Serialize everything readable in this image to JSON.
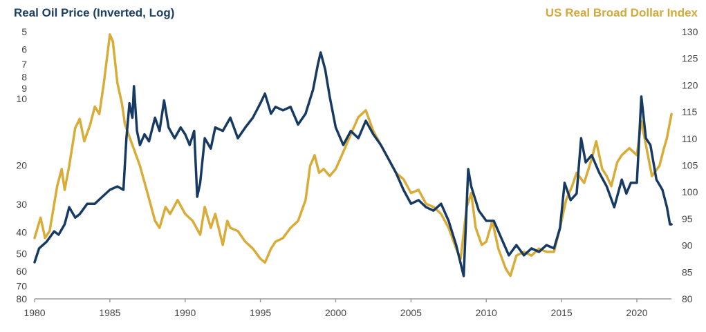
{
  "chart_data": {
    "type": "line",
    "title_left": "Real Oil Price (Inverted, Log)",
    "title_right": "US Real Broad Dollar Index",
    "xlabel": "",
    "x_ticks": [
      "1980",
      "1985",
      "1990",
      "1995",
      "2000",
      "2005",
      "2010",
      "2015",
      "2020"
    ],
    "xlim": [
      1980,
      2022.3
    ],
    "left_axis": {
      "scale": "log",
      "inverted": true,
      "ylim": [
        5,
        80
      ],
      "ticks": [
        "5",
        "6",
        "7",
        "8",
        "9",
        "10",
        "20",
        "30",
        "40",
        "50",
        "60",
        "70",
        "80"
      ]
    },
    "right_axis": {
      "scale": "linear",
      "ylim": [
        80,
        130
      ],
      "ticks": [
        "130",
        "125",
        "120",
        "115",
        "110",
        "105",
        "100",
        "95",
        "90",
        "85",
        "80"
      ]
    },
    "grid": false,
    "colors": {
      "oil": "#173a63",
      "dollar": "#d9ac37",
      "axis": "#9a9a9a"
    },
    "series": [
      {
        "name": "Real Oil Price",
        "axis": "left",
        "x": [
          1980.0,
          1980.3,
          1980.8,
          1981.3,
          1981.6,
          1982.0,
          1982.3,
          1982.7,
          1983.0,
          1983.5,
          1984.0,
          1984.5,
          1985.0,
          1985.5,
          1985.9,
          1986.1,
          1986.3,
          1986.5,
          1986.6,
          1986.8,
          1987.0,
          1987.3,
          1987.6,
          1988.0,
          1988.3,
          1988.6,
          1988.9,
          1989.3,
          1989.7,
          1990.0,
          1990.3,
          1990.6,
          1990.8,
          1991.0,
          1991.3,
          1991.7,
          1992.0,
          1992.5,
          1993.0,
          1993.5,
          1994.0,
          1994.5,
          1995.0,
          1995.3,
          1995.7,
          1996.0,
          1996.5,
          1997.0,
          1997.5,
          1998.0,
          1998.5,
          1998.8,
          1999.0,
          1999.3,
          1999.6,
          2000.0,
          2000.5,
          2001.0,
          2001.5,
          2002.0,
          2002.5,
          2003.0,
          2003.5,
          2004.0,
          2004.5,
          2005.0,
          2005.5,
          2006.0,
          2006.5,
          2007.0,
          2007.5,
          2008.0,
          2008.5,
          2008.8,
          2009.0,
          2009.5,
          2010.0,
          2010.5,
          2011.0,
          2011.5,
          2012.0,
          2012.5,
          2013.0,
          2013.5,
          2014.0,
          2014.5,
          2014.9,
          2015.2,
          2015.6,
          2016.0,
          2016.3,
          2016.6,
          2017.0,
          2017.5,
          2018.0,
          2018.5,
          2019.0,
          2019.3,
          2019.6,
          2020.0,
          2020.3,
          2020.6,
          2020.9,
          2021.3,
          2021.7,
          2022.0,
          2022.2,
          2022.3
        ],
        "values": [
          54.7,
          47.4,
          44.2,
          39.7,
          41.1,
          36.9,
          30.9,
          34.4,
          33.2,
          29.8,
          29.8,
          27.7,
          25.8,
          24.9,
          25.8,
          15.1,
          10.5,
          12.2,
          8.8,
          14.0,
          16.2,
          14.5,
          15.6,
          12.2,
          14.0,
          10.2,
          13.5,
          15.1,
          13.5,
          14.5,
          16.2,
          14.0,
          27.7,
          24.0,
          15.1,
          16.8,
          13.5,
          14.0,
          12.2,
          15.1,
          13.5,
          12.2,
          10.5,
          9.5,
          11.7,
          10.9,
          11.3,
          10.9,
          13.1,
          11.7,
          9.1,
          7.1,
          6.2,
          7.4,
          9.8,
          13.5,
          16.2,
          14.0,
          15.1,
          12.6,
          14.5,
          16.2,
          18.7,
          21.6,
          25.8,
          29.8,
          28.7,
          30.9,
          32.0,
          29.8,
          35.6,
          45.8,
          63.1,
          20.8,
          24.9,
          32.0,
          35.6,
          35.6,
          42.6,
          50.9,
          45.8,
          50.9,
          47.4,
          49.1,
          45.8,
          47.4,
          38.3,
          24.0,
          28.7,
          26.8,
          15.1,
          19.4,
          18.0,
          21.6,
          24.9,
          30.9,
          23.2,
          26.8,
          24.0,
          24.0,
          9.8,
          15.1,
          16.2,
          23.2,
          25.8,
          30.9,
          36.9,
          36.9
        ]
      },
      {
        "name": "US Real Broad Dollar Index",
        "axis": "right",
        "x": [
          1980.0,
          1980.4,
          1980.7,
          1981.0,
          1981.5,
          1981.8,
          1982.0,
          1982.3,
          1982.7,
          1983.0,
          1983.3,
          1983.7,
          1984.0,
          1984.3,
          1984.6,
          1985.0,
          1985.2,
          1985.5,
          1985.8,
          1986.0,
          1986.5,
          1987.0,
          1987.5,
          1988.0,
          1988.3,
          1988.7,
          1989.0,
          1989.5,
          1990.0,
          1990.5,
          1991.0,
          1991.3,
          1991.7,
          1992.0,
          1992.5,
          1992.8,
          1993.0,
          1993.5,
          1994.0,
          1994.5,
          1995.0,
          1995.3,
          1995.7,
          1996.0,
          1996.5,
          1997.0,
          1997.5,
          1998.0,
          1998.3,
          1998.6,
          1998.9,
          1999.2,
          1999.6,
          2000.0,
          2000.5,
          2001.0,
          2001.5,
          2002.0,
          2002.5,
          2003.0,
          2003.5,
          2004.0,
          2004.5,
          2005.0,
          2005.5,
          2006.0,
          2006.5,
          2007.0,
          2007.5,
          2008.0,
          2008.3,
          2008.7,
          2009.0,
          2009.3,
          2009.7,
          2010.0,
          2010.4,
          2010.8,
          2011.3,
          2011.6,
          2012.0,
          2012.5,
          2013.0,
          2013.5,
          2014.0,
          2014.5,
          2014.9,
          2015.3,
          2015.7,
          2016.0,
          2016.5,
          2017.0,
          2017.3,
          2017.7,
          2018.0,
          2018.3,
          2018.7,
          2019.0,
          2019.5,
          2020.0,
          2020.3,
          2020.6,
          2021.0,
          2021.5,
          2021.8,
          2022.0,
          2022.3
        ],
        "values": [
          91.4,
          95.2,
          91.4,
          92.7,
          101.1,
          104.3,
          100.4,
          104.9,
          112.0,
          113.7,
          109.5,
          112.7,
          116.0,
          114.6,
          120.4,
          129.5,
          128.2,
          120.4,
          116.6,
          112.7,
          108.8,
          104.9,
          99.8,
          94.6,
          93.3,
          97.2,
          95.9,
          98.5,
          95.9,
          94.6,
          92.0,
          97.2,
          93.3,
          95.9,
          90.1,
          94.6,
          93.3,
          92.7,
          90.7,
          89.4,
          87.5,
          86.8,
          89.4,
          90.7,
          91.4,
          93.3,
          94.6,
          98.5,
          104.9,
          106.9,
          103.6,
          104.3,
          103.0,
          104.3,
          107.5,
          110.8,
          114.0,
          115.3,
          111.4,
          108.8,
          106.2,
          103.6,
          102.4,
          99.8,
          100.4,
          97.8,
          97.2,
          95.9,
          93.3,
          89.4,
          87.5,
          97.2,
          99.8,
          93.3,
          90.1,
          90.7,
          94.6,
          89.4,
          85.6,
          84.3,
          88.1,
          88.8,
          88.1,
          89.4,
          88.8,
          88.8,
          93.3,
          98.5,
          101.1,
          103.6,
          101.7,
          106.2,
          109.5,
          104.3,
          103.0,
          101.1,
          105.6,
          106.9,
          108.2,
          106.9,
          113.3,
          108.8,
          103.0,
          104.9,
          108.2,
          110.1,
          114.6
        ]
      }
    ]
  }
}
